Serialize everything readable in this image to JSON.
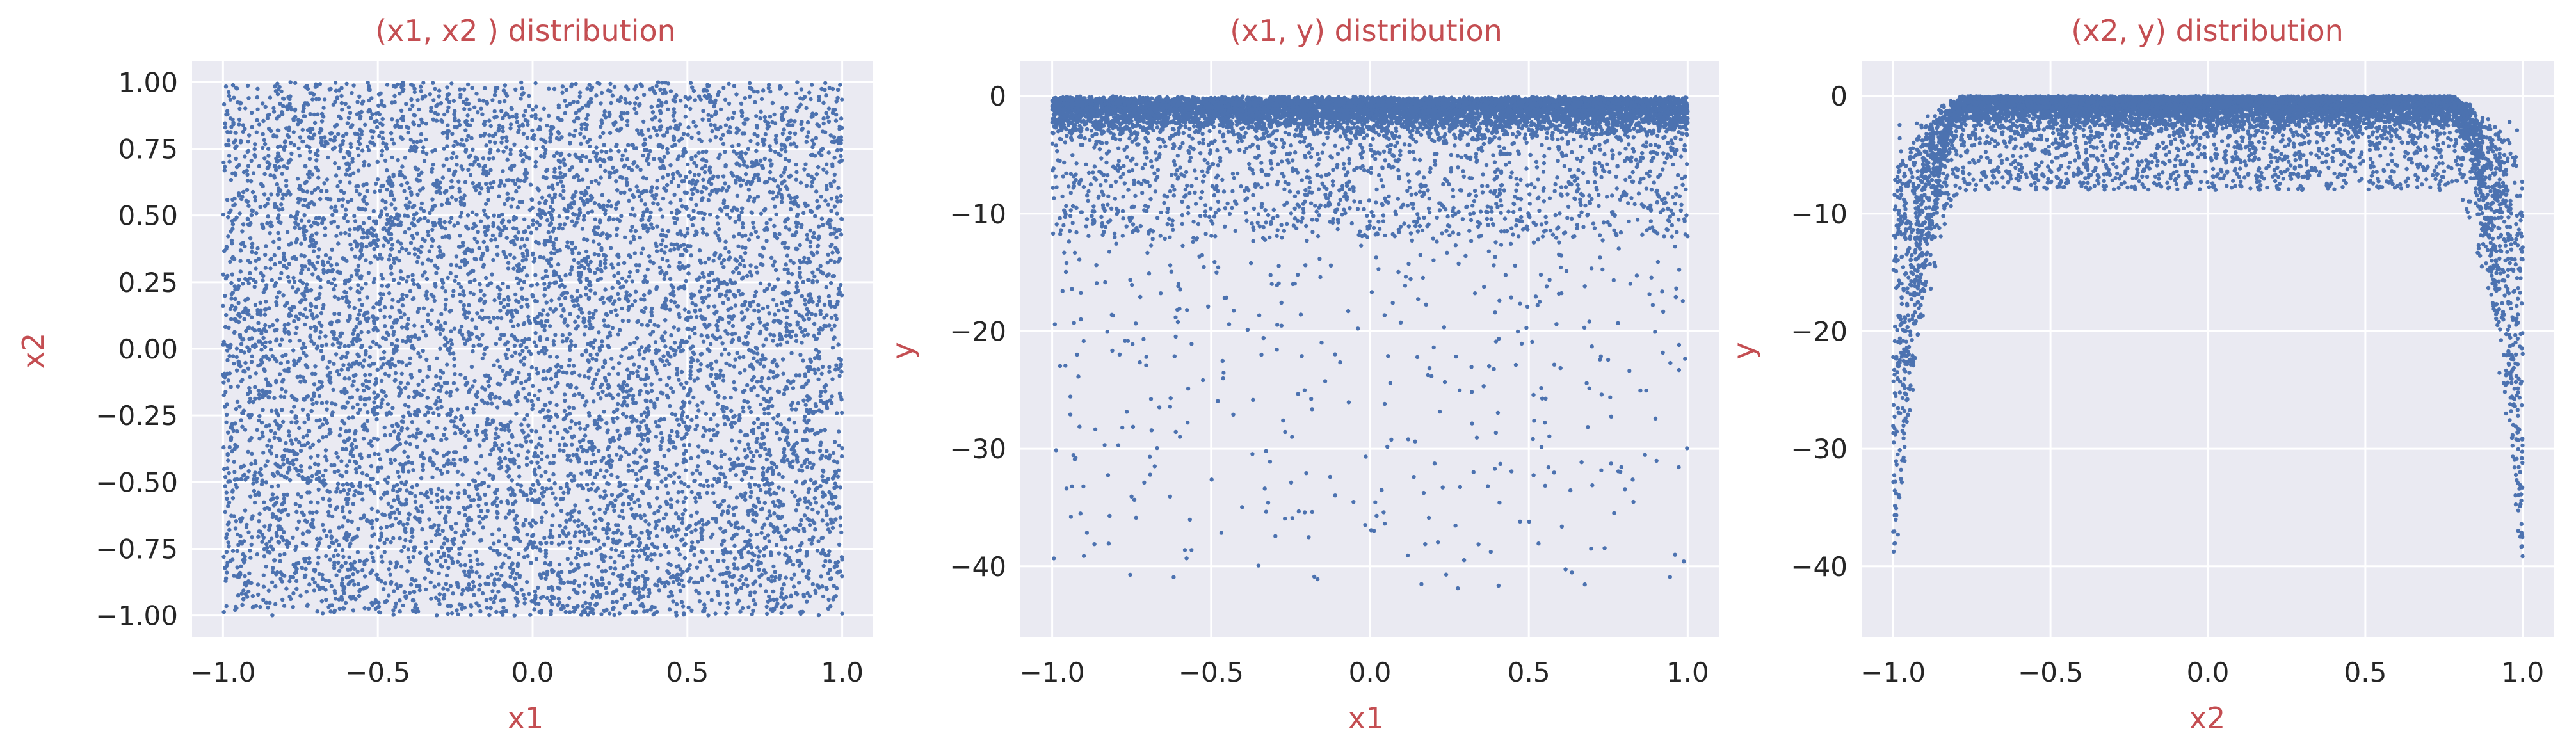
{
  "figure": {
    "colors": {
      "background": "#eaeaf2",
      "grid": "#ffffff",
      "points": "#4c72b0",
      "label": "#c44e52",
      "tick": "#262626"
    },
    "point_count_per_panel": 8000
  },
  "chart_data": [
    {
      "type": "scatter",
      "title": "(x1, x2 ) distribution",
      "xlabel": "x1",
      "ylabel": "x2",
      "xlim": [
        -1.1,
        1.1
      ],
      "ylim": [
        -1.08,
        1.08
      ],
      "xticks": [
        -1.0,
        -0.5,
        0.0,
        0.5,
        1.0
      ],
      "xtick_labels": [
        "−1.0",
        "−0.5",
        "0.0",
        "0.5",
        "1.0"
      ],
      "yticks": [
        -1.0,
        -0.75,
        -0.5,
        -0.25,
        0.0,
        0.25,
        0.5,
        0.75,
        1.0
      ],
      "ytick_labels": [
        "−1.00",
        "−0.75",
        "−0.50",
        "−0.25",
        "0.00",
        "0.25",
        "0.50",
        "0.75",
        "1.00"
      ],
      "grid": true,
      "distribution": {
        "x": "uniform on [-1, 1]",
        "y": "uniform on [-1, 1]"
      }
    },
    {
      "type": "scatter",
      "title": "(x1, y) distribution",
      "xlabel": "x1",
      "ylabel": "y",
      "xlim": [
        -1.1,
        1.1
      ],
      "ylim": [
        -46.0,
        3.0
      ],
      "xticks": [
        -1.0,
        -0.5,
        0.0,
        0.5,
        1.0
      ],
      "xtick_labels": [
        "−1.0",
        "−0.5",
        "0.0",
        "0.5",
        "1.0"
      ],
      "yticks": [
        -40,
        -30,
        -20,
        -10,
        0
      ],
      "ytick_labels": [
        "−40",
        "−30",
        "−20",
        "−10",
        "0"
      ],
      "grid": true,
      "distribution": {
        "x": "uniform on [-1, 1]",
        "y": "concentrated between 0 and -5, long tail down to about -44"
      }
    },
    {
      "type": "scatter",
      "title": "(x2, y) distribution",
      "xlabel": "x2",
      "ylabel": "y",
      "xlim": [
        -1.1,
        1.1
      ],
      "ylim": [
        -46.0,
        3.0
      ],
      "xticks": [
        -1.0,
        -0.5,
        0.0,
        0.5,
        1.0
      ],
      "xtick_labels": [
        "−1.0",
        "−0.5",
        "0.0",
        "0.5",
        "1.0"
      ],
      "yticks": [
        -40,
        -30,
        -20,
        -10,
        0
      ],
      "ytick_labels": [
        "−40",
        "−30",
        "−20",
        "−10",
        "0"
      ],
      "grid": true,
      "distribution": {
        "x": "uniform on [-1, 1]",
        "y": "near 0 in the middle, dropping steeply toward x2 = -1 and x2 = 1"
      }
    }
  ]
}
